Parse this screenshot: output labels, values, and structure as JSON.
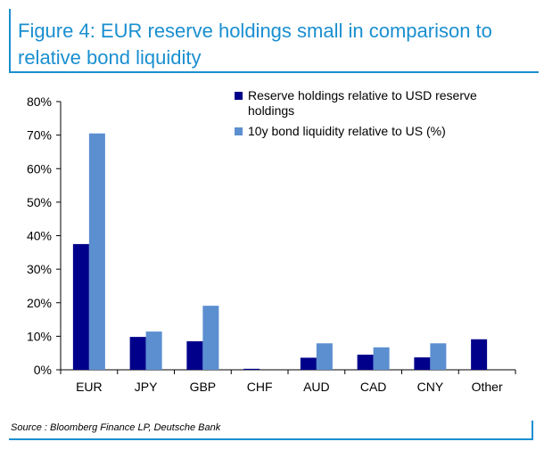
{
  "title": "Figure 4: EUR reserve holdings small in comparison to relative bond liquidity",
  "source": "Source : Bloomberg Finance LP, Deutsche Bank",
  "colors": {
    "series1": "#00008b",
    "series2": "#5b8fd0",
    "accent": "#1a8fd0"
  },
  "chart_data": {
    "type": "bar",
    "title": "",
    "xlabel": "",
    "ylabel": "",
    "ylim": [
      0,
      80
    ],
    "yticks": [
      0,
      10,
      20,
      30,
      40,
      50,
      60,
      70,
      80
    ],
    "ytick_labels": [
      "0%",
      "10%",
      "20%",
      "30%",
      "40%",
      "50%",
      "60%",
      "70%",
      "80%"
    ],
    "categories": [
      "EUR",
      "JPY",
      "GBP",
      "CHF",
      "AUD",
      "CAD",
      "CNY",
      "Other"
    ],
    "series": [
      {
        "name": "Reserve holdings relative to USD reserve holdings",
        "legend_lines": [
          "Reserve holdings relative to USD reserve",
          "holdings"
        ],
        "values": [
          37.5,
          9.8,
          8.5,
          0.3,
          3.6,
          4.5,
          3.7,
          9.1
        ]
      },
      {
        "name": "10y bond liquidity relative to US (%)",
        "legend_lines": [
          "10y bond liquidity relative to US (%)"
        ],
        "values": [
          70.5,
          11.4,
          19.1,
          0.0,
          7.9,
          6.7,
          7.9,
          null
        ]
      }
    ],
    "legend_position": "top-right",
    "grid": false
  }
}
